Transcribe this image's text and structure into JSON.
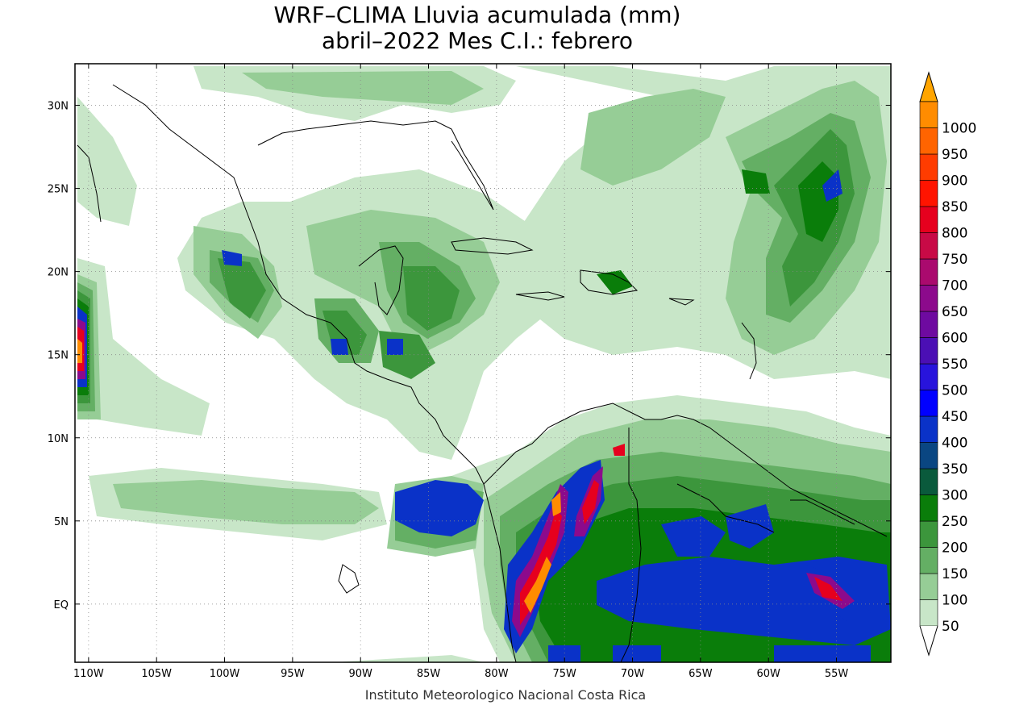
{
  "title_line1": "WRF–CLIMA Lluvia acumulada (mm)",
  "title_line2": "abril–2022 Mes C.I.: febrero",
  "credit": "Instituto Meteorologico Nacional Costa Rica",
  "lat_ticks": [
    {
      "value": 30,
      "label": "30N"
    },
    {
      "value": 25,
      "label": "25N"
    },
    {
      "value": 20,
      "label": "20N"
    },
    {
      "value": 15,
      "label": "15N"
    },
    {
      "value": 10,
      "label": "10N"
    },
    {
      "value": 5,
      "label": "5N"
    },
    {
      "value": 0,
      "label": "EQ"
    }
  ],
  "lon_ticks": [
    {
      "value": -110,
      "label": "110W"
    },
    {
      "value": -105,
      "label": "105W"
    },
    {
      "value": -100,
      "label": "100W"
    },
    {
      "value": -95,
      "label": "95W"
    },
    {
      "value": -90,
      "label": "90W"
    },
    {
      "value": -85,
      "label": "85W"
    },
    {
      "value": -80,
      "label": "80W"
    },
    {
      "value": -75,
      "label": "75W"
    },
    {
      "value": -70,
      "label": "70W"
    },
    {
      "value": -65,
      "label": "65W"
    },
    {
      "value": -60,
      "label": "60W"
    },
    {
      "value": -55,
      "label": "55W"
    }
  ],
  "extent": {
    "lon_min": -111,
    "lon_max": -51,
    "lat_min": -3.5,
    "lat_max": 32.5
  },
  "colorbar": {
    "levels": [
      {
        "label": "50",
        "color": "#c8e6c8"
      },
      {
        "label": "100",
        "color": "#96cd96"
      },
      {
        "label": "150",
        "color": "#64af64"
      },
      {
        "label": "200",
        "color": "#3c963c"
      },
      {
        "label": "250",
        "color": "#0a7d0a"
      },
      {
        "label": "300",
        "color": "#0a5a3c"
      },
      {
        "label": "350",
        "color": "#0a4682"
      },
      {
        "label": "400",
        "color": "#0a32c8"
      },
      {
        "label": "450",
        "color": "#0000ff"
      },
      {
        "label": "500",
        "color": "#2814dc"
      },
      {
        "label": "550",
        "color": "#4b0fb4"
      },
      {
        "label": "600",
        "color": "#6e0aa0"
      },
      {
        "label": "650",
        "color": "#8c0a8c"
      },
      {
        "label": "700",
        "color": "#aa0a6e"
      },
      {
        "label": "750",
        "color": "#c80a46"
      },
      {
        "label": "800",
        "color": "#e6001e"
      },
      {
        "label": "850",
        "color": "#ff1400"
      },
      {
        "label": "900",
        "color": "#ff3c00"
      },
      {
        "label": "950",
        "color": "#ff6400"
      },
      {
        "label": "1000",
        "color": "#ff8c00"
      }
    ],
    "arrow_color": "#ffa500"
  }
}
